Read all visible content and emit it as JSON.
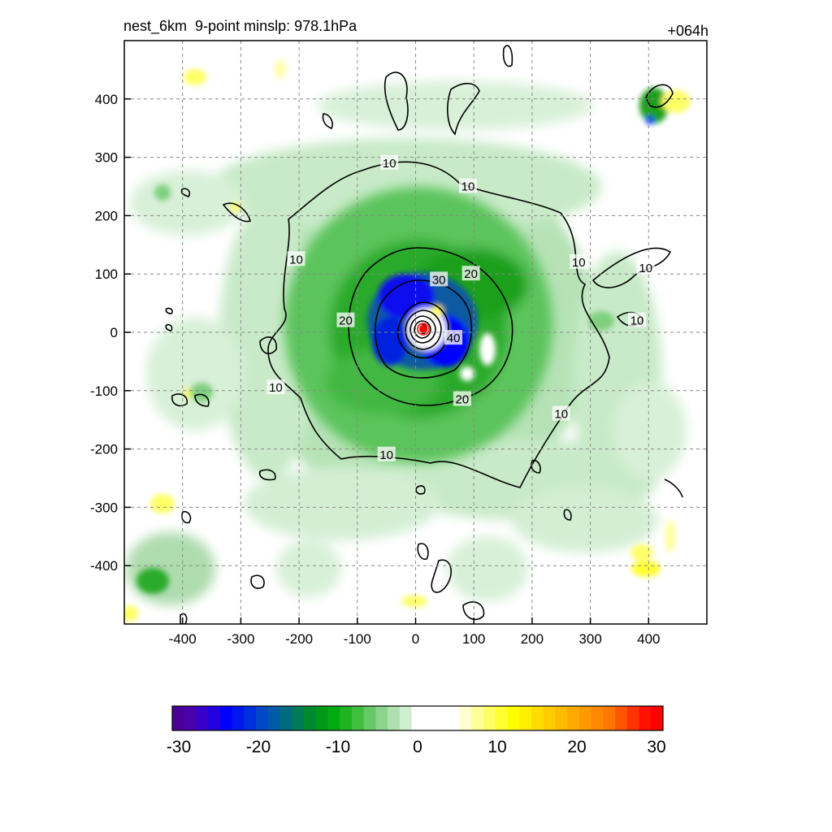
{
  "header": {
    "title_left": "nest_6km  9-point minslp: 978.1hPa",
    "title_right": "+064h"
  },
  "chart_data": {
    "type": "heatmap",
    "title": "nest_6km  9-point minslp: 978.1hPa",
    "forecast_hour": "+064h",
    "min_slp_hPa": 978.1,
    "xlim": [
      -500,
      500
    ],
    "ylim": [
      -500,
      500
    ],
    "x_ticks": [
      -400,
      -300,
      -200,
      -100,
      0,
      100,
      200,
      300,
      400
    ],
    "y_ticks": [
      -400,
      -300,
      -200,
      -100,
      0,
      100,
      200,
      300,
      400
    ],
    "x_tick_labels": [
      "-400",
      "-300",
      "-200",
      "-100",
      "0",
      "100",
      "200",
      "300",
      "400"
    ],
    "y_tick_labels": [
      "400",
      "300",
      "200",
      "100",
      "0",
      "-100",
      "-200",
      "-300",
      "-400"
    ],
    "grid": true,
    "storm_center": [
      15,
      5
    ],
    "contour_levels": [
      10,
      20,
      30,
      40
    ],
    "contour_labels": [
      {
        "text": "10",
        "x": -45,
        "y": 290
      },
      {
        "text": "10",
        "x": 90,
        "y": 250
      },
      {
        "text": "10",
        "x": -205,
        "y": 125
      },
      {
        "text": "10",
        "x": 280,
        "y": 120
      },
      {
        "text": "10",
        "x": 395,
        "y": 110
      },
      {
        "text": "10",
        "x": 380,
        "y": 20
      },
      {
        "text": "10",
        "x": -240,
        "y": -95
      },
      {
        "text": "10",
        "x": 250,
        "y": -140
      },
      {
        "text": "10",
        "x": -50,
        "y": -210
      },
      {
        "text": "20",
        "x": 95,
        "y": 100
      },
      {
        "text": "20",
        "x": -120,
        "y": 20
      },
      {
        "text": "20",
        "x": 80,
        "y": -115
      },
      {
        "text": "30",
        "x": 40,
        "y": 90
      },
      {
        "text": "40",
        "x": 65,
        "y": -10
      }
    ],
    "colorbar": {
      "min": -30,
      "max": 30,
      "labels": [
        "-30",
        "-20",
        "-10",
        "0",
        "10",
        "20",
        "30"
      ],
      "colors": [
        "#4b0095",
        "#4a00aa",
        "#3800c8",
        "#2200e0",
        "#0000ff",
        "#0018ee",
        "#0030dd",
        "#0048c8",
        "#005aa6",
        "#006a80",
        "#007a55",
        "#008a30",
        "#009a18",
        "#00aa10",
        "#20b420",
        "#40be40",
        "#66c866",
        "#8cd48c",
        "#b0e0b0",
        "#d0eed0",
        "#ffffff",
        "#ffffff",
        "#ffffff",
        "#ffffff",
        "#ffffd0",
        "#ffff99",
        "#ffff66",
        "#ffff33",
        "#ffff00",
        "#ffee00",
        "#ffdd00",
        "#ffcc00",
        "#ffbb00",
        "#ffaa00",
        "#ff9900",
        "#ff8800",
        "#ff7700",
        "#ff5500",
        "#ff3300",
        "#ff1100",
        "#ff0000"
      ]
    }
  }
}
